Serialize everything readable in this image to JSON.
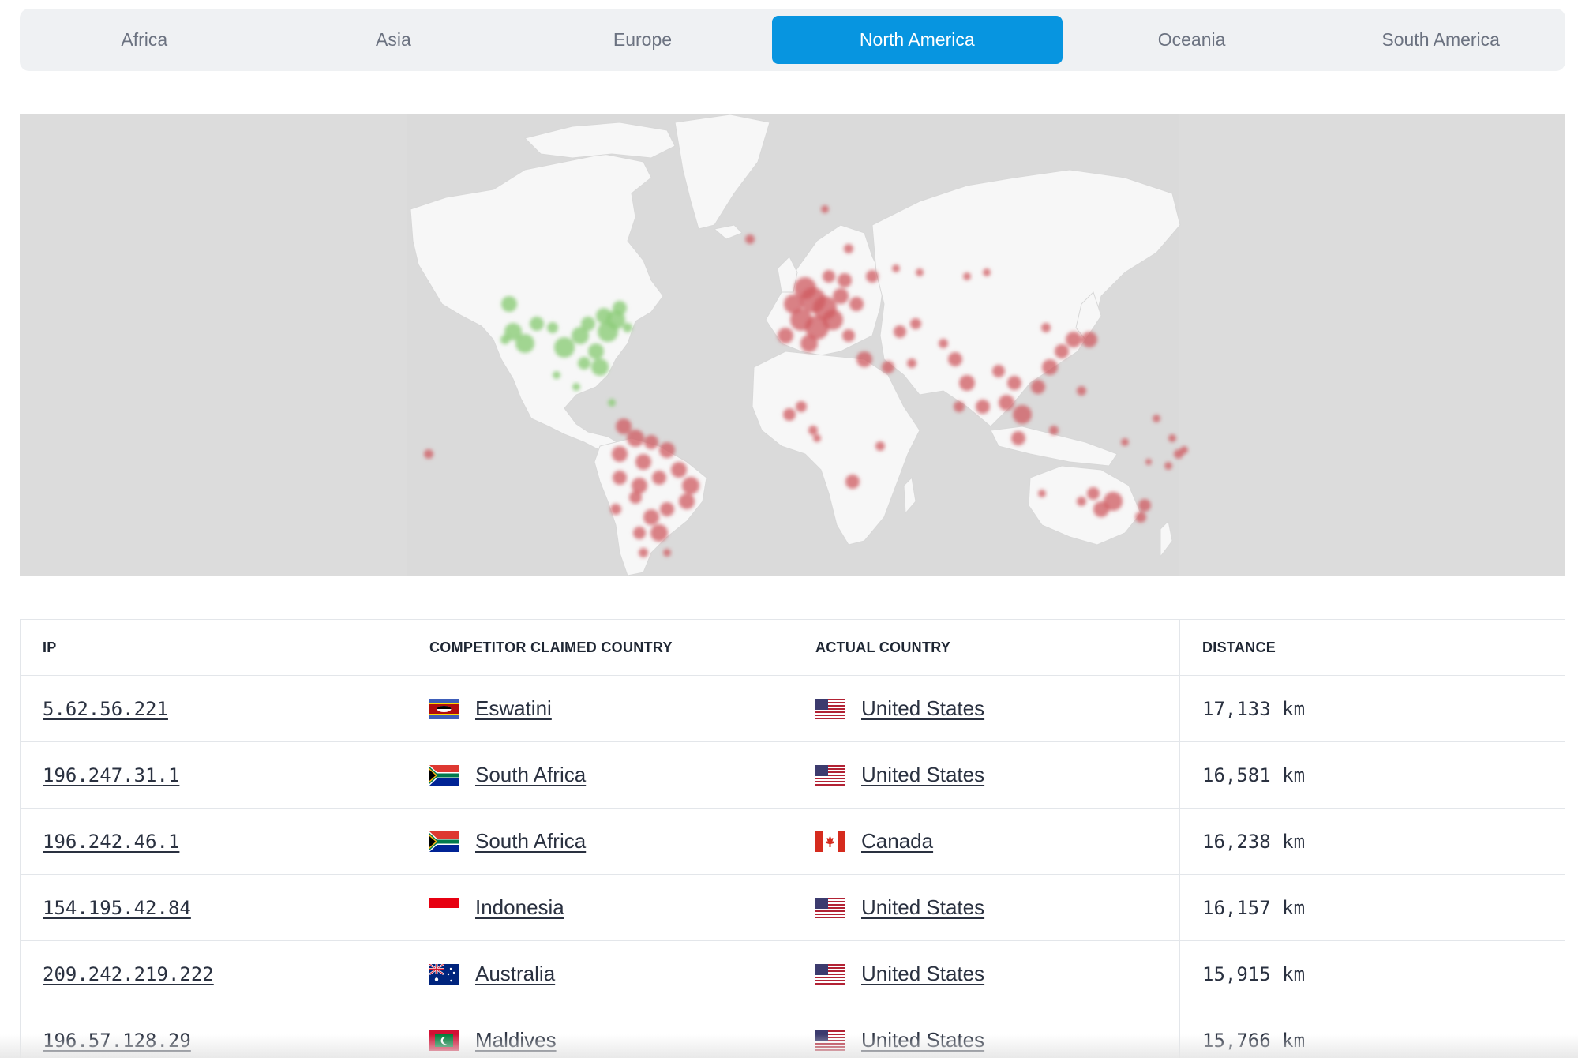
{
  "tabs": [
    {
      "label": "Africa",
      "active": false
    },
    {
      "label": "Asia",
      "active": false
    },
    {
      "label": "Europe",
      "active": false
    },
    {
      "label": "North America",
      "active": true
    },
    {
      "label": "Oceania",
      "active": false
    },
    {
      "label": "South America",
      "active": false
    }
  ],
  "map": {
    "background_color": "#dcdcdc",
    "land_color": "#f7f7f7",
    "claimed_color": "#cf5a5f",
    "actual_color": "#8ccc78"
  },
  "table": {
    "headers": {
      "ip": "IP",
      "claimed": "COMPETITOR CLAIMED COUNTRY",
      "actual": "ACTUAL COUNTRY",
      "distance": "DISTANCE"
    },
    "rows": [
      {
        "ip": "5.62.56.221",
        "claimed": "Eswatini",
        "claimed_flag": "eswatini-flag-icon",
        "actual": "United States",
        "actual_flag": "us-flag-icon",
        "distance": "17,133 km"
      },
      {
        "ip": "196.247.31.1",
        "claimed": "South Africa",
        "claimed_flag": "south-africa-flag-icon",
        "actual": "United States",
        "actual_flag": "us-flag-icon",
        "distance": "16,581 km"
      },
      {
        "ip": "196.242.46.1",
        "claimed": "South Africa",
        "claimed_flag": "south-africa-flag-icon",
        "actual": "Canada",
        "actual_flag": "canada-flag-icon",
        "distance": "16,238 km"
      },
      {
        "ip": "154.195.42.84",
        "claimed": "Indonesia",
        "claimed_flag": "indonesia-flag-icon",
        "actual": "United States",
        "actual_flag": "us-flag-icon",
        "distance": "16,157 km"
      },
      {
        "ip": "209.242.219.222",
        "claimed": "Australia",
        "claimed_flag": "australia-flag-icon",
        "actual": "United States",
        "actual_flag": "us-flag-icon",
        "distance": "15,915 km"
      },
      {
        "ip": "196.57.128.29",
        "claimed": "Maldives",
        "claimed_flag": "maldives-flag-icon",
        "actual": "United States",
        "actual_flag": "us-flag-icon",
        "distance": "15,766 km"
      }
    ]
  }
}
